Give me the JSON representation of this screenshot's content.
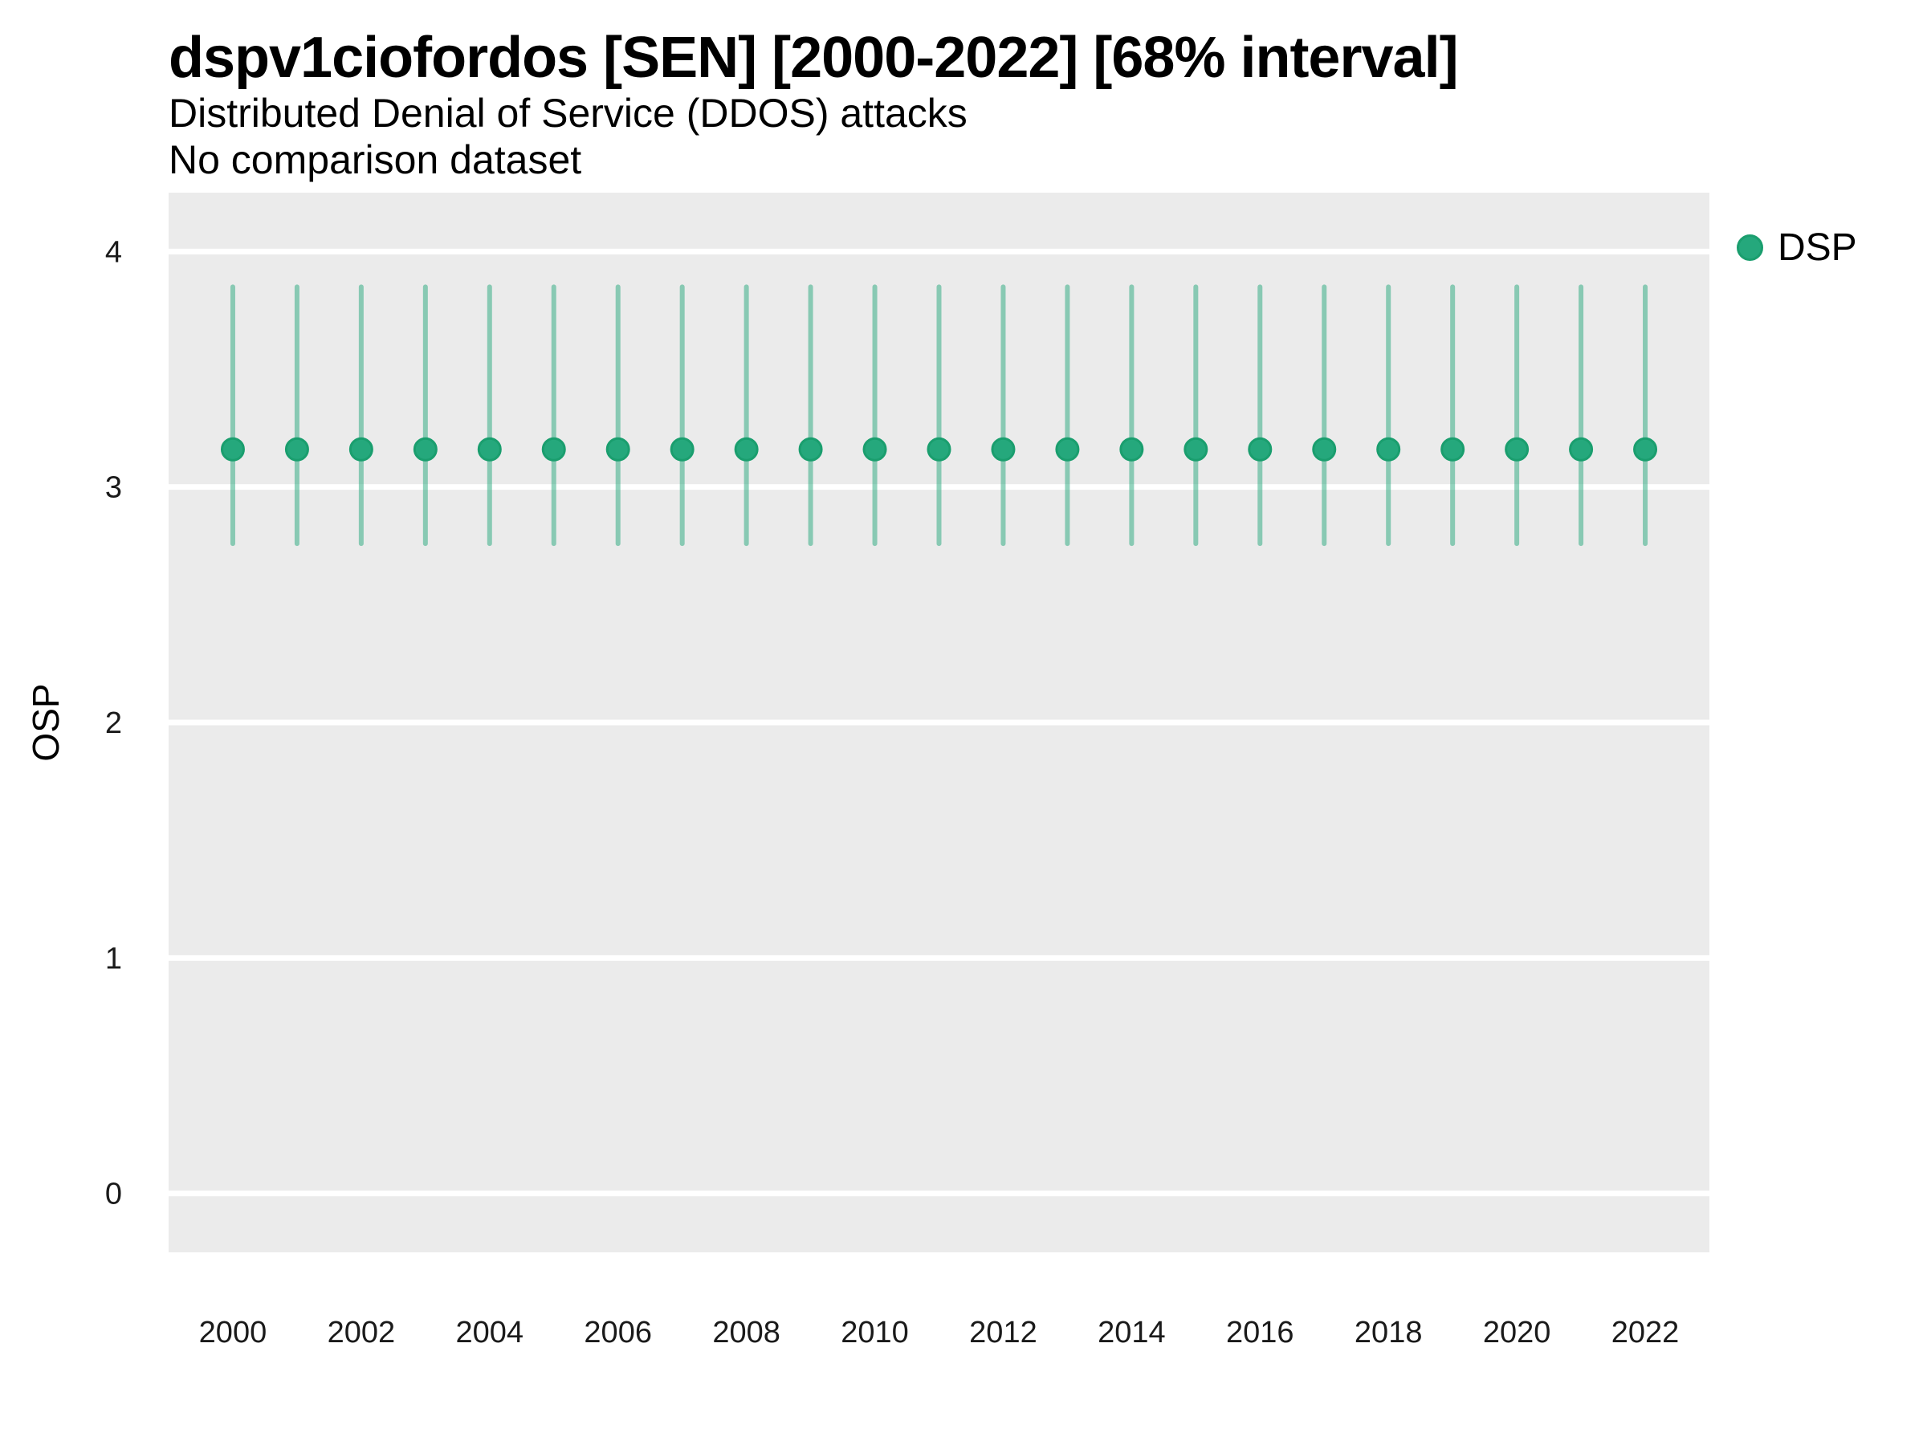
{
  "header": {
    "title": "dspv1ciofordos [SEN] [2000-2022] [68% interval]",
    "subtitle": "Distributed Denial of Service (DDOS) attacks",
    "note": "No comparison dataset"
  },
  "legend": {
    "position": "top-right",
    "items": [
      {
        "label": "DSP",
        "marker": "circle"
      }
    ]
  },
  "colors": {
    "point_fill": "#25a87c",
    "point_stroke": "#1a9e6e",
    "interval": "rgba(37,168,124,0.5)",
    "panel_bg": "#ebebeb",
    "gridline": "#ffffff",
    "text": "#1a1a1a"
  },
  "chart_data": {
    "type": "scatter",
    "title": "dspv1ciofordos [SEN] [2000-2022] [68% interval]",
    "subtitle": "Distributed Denial of Service (DDOS) attacks",
    "note": "No comparison dataset",
    "xlabel": "",
    "ylabel": "OSP",
    "interval_level": "68%",
    "grid": "horizontal-major-only",
    "legend_position": "top-right",
    "x": [
      2000,
      2001,
      2002,
      2003,
      2004,
      2005,
      2006,
      2007,
      2008,
      2009,
      2010,
      2011,
      2012,
      2013,
      2014,
      2015,
      2016,
      2017,
      2018,
      2019,
      2020,
      2021,
      2022
    ],
    "series": [
      {
        "name": "DSP",
        "values": [
          3.16,
          3.16,
          3.16,
          3.16,
          3.16,
          3.16,
          3.16,
          3.16,
          3.16,
          3.16,
          3.16,
          3.16,
          3.16,
          3.16,
          3.16,
          3.16,
          3.16,
          3.16,
          3.16,
          3.16,
          3.16,
          3.16,
          3.16
        ],
        "lower": [
          2.76,
          2.76,
          2.76,
          2.76,
          2.76,
          2.76,
          2.76,
          2.76,
          2.76,
          2.76,
          2.76,
          2.76,
          2.76,
          2.76,
          2.76,
          2.76,
          2.76,
          2.76,
          2.76,
          2.76,
          2.76,
          2.76,
          2.76
        ],
        "upper": [
          3.85,
          3.85,
          3.85,
          3.85,
          3.85,
          3.85,
          3.85,
          3.85,
          3.85,
          3.85,
          3.85,
          3.85,
          3.85,
          3.85,
          3.85,
          3.85,
          3.85,
          3.85,
          3.85,
          3.85,
          3.85,
          3.85,
          3.85
        ]
      }
    ],
    "xticks": [
      2000,
      2002,
      2004,
      2006,
      2008,
      2010,
      2012,
      2014,
      2016,
      2018,
      2020,
      2022
    ],
    "yticks": [
      0,
      1,
      2,
      3,
      4
    ],
    "xlim": [
      1999,
      2023
    ],
    "ylim": [
      -0.25,
      4.25
    ]
  }
}
